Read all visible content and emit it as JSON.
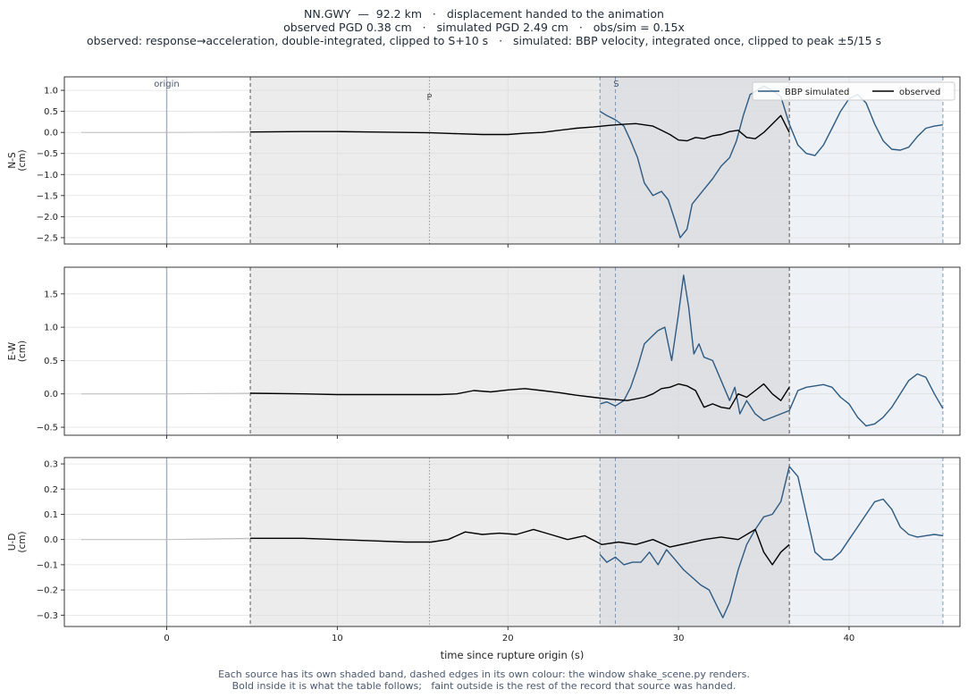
{
  "title_lines": [
    "NN.GWY  —  92.2 km   ·   displacement handed to the animation",
    "observed PGD 0.38 cm   ·   simulated PGD 2.49 cm   ·   obs/sim = 0.15x",
    "observed: response→acceleration, double-integrated, clipped to S+10 s   ·   simulated: BBP velocity, integrated once, clipped to peak ±5/15 s"
  ],
  "footnote_lines": [
    "Each source has its own shaded band, dashed edges in its own colour: the window shake_scene.py renders.",
    "Bold inside it is what the table follows;   faint outside is the rest of the record that source was handed."
  ],
  "colors": {
    "observed": "#000000",
    "simulated": "#2d5a82",
    "observed_band": "#ececec",
    "simulated_band": "#eef2f6",
    "overlap_band": "#dfe0e4",
    "marker": "#a3afc0"
  },
  "chart_data": {
    "type": "line",
    "xlabel": "time since rupture origin (s)",
    "xlim": [
      -6,
      46.5
    ],
    "xticks": [
      0,
      10,
      20,
      30,
      40
    ],
    "markers": {
      "origin": {
        "label": "origin",
        "t": 0
      },
      "P": {
        "label": "P",
        "t": 15.4
      },
      "S": {
        "label": "S",
        "t": 26.3
      }
    },
    "windows": {
      "observed": [
        4.9,
        36.5
      ],
      "simulated": [
        25.4,
        45.5
      ]
    },
    "legend": {
      "position": "top-right",
      "entries": [
        {
          "name": "BBP simulated",
          "color": "#2d5a82"
        },
        {
          "name": "observed",
          "color": "#000000"
        }
      ]
    },
    "panels": [
      {
        "ylabel": "N-S\n(cm)",
        "ylim": [
          -2.65,
          1.32
        ],
        "yticks": [
          -2.5,
          -2.0,
          -1.5,
          -1.0,
          -0.5,
          0.0,
          0.5,
          1.0
        ],
        "show_P": true,
        "show_S_label": true,
        "show_legend": true,
        "observed": {
          "t": [
            -5,
            0,
            4.9,
            8,
            10,
            12,
            14,
            15.5,
            17,
            18.5,
            20,
            21,
            22,
            23,
            24,
            25,
            26,
            27,
            27.5,
            28,
            28.5,
            29,
            29.5,
            30,
            30.5,
            31,
            31.5,
            32,
            32.5,
            33,
            33.5,
            34,
            34.5,
            35,
            35.5,
            36,
            36.5
          ],
          "y": [
            0,
            0,
            0.01,
            0.02,
            0.02,
            0.01,
            0.0,
            -0.01,
            -0.03,
            -0.05,
            -0.05,
            -0.02,
            0.0,
            0.05,
            0.1,
            0.13,
            0.17,
            0.2,
            0.21,
            0.18,
            0.15,
            0.05,
            -0.05,
            -0.18,
            -0.2,
            -0.12,
            -0.15,
            -0.08,
            -0.05,
            0.02,
            0.05,
            -0.12,
            -0.15,
            0.0,
            0.2,
            0.4,
            0.0
          ]
        },
        "simulated": {
          "t": [
            25.4,
            25.8,
            26.3,
            26.8,
            27.2,
            27.6,
            28.0,
            28.5,
            29.0,
            29.4,
            29.8,
            30.1,
            30.5,
            30.8,
            31.2,
            31.6,
            32.0,
            32.5,
            33.0,
            33.4,
            33.8,
            34.2,
            34.6,
            35.0,
            35.5,
            36.0,
            36.5,
            37.0,
            37.5,
            38.0,
            38.5,
            39.0,
            39.5,
            40.0,
            40.5,
            41.0,
            41.5,
            42.0,
            42.5,
            43.0,
            43.5,
            44.0,
            44.5,
            45.0,
            45.5
          ],
          "y": [
            0.5,
            0.4,
            0.3,
            0.15,
            -0.2,
            -0.6,
            -1.2,
            -1.5,
            -1.4,
            -1.6,
            -2.1,
            -2.5,
            -2.3,
            -1.7,
            -1.5,
            -1.3,
            -1.1,
            -0.8,
            -0.6,
            -0.2,
            0.4,
            0.9,
            1.0,
            1.1,
            1.0,
            0.85,
            0.2,
            -0.3,
            -0.5,
            -0.55,
            -0.3,
            0.1,
            0.5,
            0.8,
            0.9,
            0.7,
            0.2,
            -0.2,
            -0.4,
            -0.42,
            -0.35,
            -0.1,
            0.1,
            0.15,
            0.18
          ]
        }
      },
      {
        "ylabel": "E-W\n(cm)",
        "ylim": [
          -0.62,
          1.9
        ],
        "yticks": [
          -0.5,
          0.0,
          0.5,
          1.0,
          1.5
        ],
        "show_P": false,
        "show_S_label": false,
        "show_legend": false,
        "observed": {
          "t": [
            -5,
            0,
            4.9,
            8,
            10,
            12,
            14,
            16,
            17,
            18,
            19,
            20,
            21,
            22,
            23,
            24,
            25,
            26,
            27,
            28,
            28.5,
            29,
            29.5,
            30,
            30.5,
            31,
            31.5,
            32,
            32.5,
            33,
            33.5,
            34,
            34.5,
            35,
            35.5,
            36,
            36.5
          ],
          "y": [
            0,
            0,
            0.01,
            0.0,
            -0.01,
            -0.01,
            -0.01,
            -0.01,
            0.0,
            0.05,
            0.03,
            0.06,
            0.08,
            0.05,
            0.02,
            -0.02,
            -0.05,
            -0.08,
            -0.1,
            -0.05,
            0.0,
            0.08,
            0.1,
            0.15,
            0.12,
            0.05,
            -0.2,
            -0.15,
            -0.2,
            -0.22,
            0.0,
            -0.05,
            0.05,
            0.15,
            0.0,
            -0.1,
            0.1
          ]
        },
        "simulated": {
          "t": [
            25.4,
            25.8,
            26.3,
            26.8,
            27.2,
            27.6,
            28.0,
            28.4,
            28.8,
            29.2,
            29.6,
            30.0,
            30.3,
            30.6,
            30.9,
            31.2,
            31.5,
            32.0,
            32.5,
            33.0,
            33.3,
            33.6,
            34.0,
            34.5,
            35.0,
            35.5,
            36.0,
            36.5,
            37.0,
            37.5,
            38.0,
            38.5,
            39.0,
            39.5,
            40.0,
            40.5,
            41.0,
            41.5,
            42.0,
            42.5,
            43.0,
            43.5,
            44.0,
            44.5,
            45.0,
            45.5
          ],
          "y": [
            -0.15,
            -0.12,
            -0.18,
            -0.1,
            0.1,
            0.4,
            0.75,
            0.85,
            0.95,
            1.0,
            0.5,
            1.2,
            1.78,
            1.3,
            0.6,
            0.75,
            0.55,
            0.5,
            0.2,
            -0.1,
            0.1,
            -0.3,
            -0.1,
            -0.3,
            -0.4,
            -0.35,
            -0.3,
            -0.25,
            0.05,
            0.1,
            0.12,
            0.14,
            0.1,
            -0.05,
            -0.15,
            -0.35,
            -0.48,
            -0.45,
            -0.35,
            -0.2,
            0.0,
            0.2,
            0.3,
            0.25,
            0.0,
            -0.22
          ]
        }
      },
      {
        "ylabel": "U-D\n(cm)",
        "ylim": [
          -0.345,
          0.325
        ],
        "yticks": [
          -0.3,
          -0.2,
          -0.1,
          0.0,
          0.1,
          0.2,
          0.3
        ],
        "show_P": true,
        "show_S_label": false,
        "show_legend": false,
        "observed": {
          "t": [
            -5,
            0,
            4.9,
            8,
            10,
            12,
            14,
            15.5,
            16.5,
            17.5,
            18.5,
            19.5,
            20.5,
            21.5,
            22.5,
            23.5,
            24.5,
            25.5,
            26.5,
            27.5,
            28.5,
            29.5,
            30.5,
            31.5,
            32.5,
            33.5,
            34.5,
            35,
            35.5,
            36,
            36.5
          ],
          "y": [
            0,
            0,
            0.005,
            0.005,
            0.0,
            -0.005,
            -0.01,
            -0.01,
            0.0,
            0.03,
            0.02,
            0.025,
            0.02,
            0.04,
            0.02,
            0.0,
            0.015,
            -0.02,
            -0.01,
            -0.02,
            0.0,
            -0.03,
            -0.015,
            0.0,
            0.01,
            0.0,
            0.04,
            -0.05,
            -0.1,
            -0.05,
            -0.02
          ]
        },
        "simulated": {
          "t": [
            25.4,
            25.8,
            26.3,
            26.8,
            27.3,
            27.8,
            28.3,
            28.8,
            29.3,
            29.8,
            30.3,
            30.8,
            31.3,
            31.8,
            32.3,
            32.6,
            33.0,
            33.5,
            34.0,
            34.5,
            35.0,
            35.5,
            36.0,
            36.5,
            37.0,
            37.5,
            38.0,
            38.5,
            39.0,
            39.5,
            40.0,
            40.5,
            41.0,
            41.5,
            42.0,
            42.5,
            43.0,
            43.5,
            44.0,
            44.5,
            45.0,
            45.5
          ],
          "y": [
            -0.06,
            -0.09,
            -0.07,
            -0.1,
            -0.09,
            -0.09,
            -0.05,
            -0.1,
            -0.04,
            -0.08,
            -0.12,
            -0.15,
            -0.18,
            -0.2,
            -0.27,
            -0.31,
            -0.25,
            -0.12,
            -0.02,
            0.04,
            0.09,
            0.1,
            0.15,
            0.29,
            0.25,
            0.1,
            -0.05,
            -0.08,
            -0.08,
            -0.05,
            0.0,
            0.05,
            0.1,
            0.15,
            0.16,
            0.12,
            0.05,
            0.02,
            0.01,
            0.015,
            0.02,
            0.015
          ]
        }
      }
    ]
  }
}
